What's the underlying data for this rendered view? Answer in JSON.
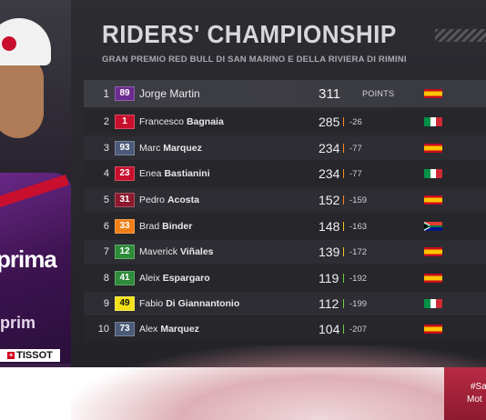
{
  "header": {
    "title": "RIDERS' CHAMPIONSHIP",
    "subtitle": "GRAN PREMIO RED BULL DI SAN MARINO E DELLA RIVIERA DI RIMINI"
  },
  "points_label": "POINTS",
  "sponsor": "TISSOT",
  "rider_photo": {
    "sponsor_text": "prima",
    "sponsor_text_lower": "prim"
  },
  "rows": [
    {
      "pos": "1",
      "num": "89",
      "num_bg": "#6a2c8e",
      "num_color": "#ffffff",
      "first": "Jorge",
      "last": "Martin",
      "points": "311",
      "gap": "",
      "flag": "spain"
    },
    {
      "pos": "2",
      "num": "1",
      "num_bg": "#c8102e",
      "num_color": "#ffffff",
      "first": "Francesco",
      "last": "Bagnaia",
      "points": "285",
      "gap": "-26",
      "flag": "italy"
    },
    {
      "pos": "3",
      "num": "93",
      "num_bg": "#4b5a78",
      "num_color": "#ffffff",
      "first": "Marc",
      "last": "Marquez",
      "points": "234",
      "gap": "-77",
      "flag": "spain"
    },
    {
      "pos": "4",
      "num": "23",
      "num_bg": "#c8102e",
      "num_color": "#ffffff",
      "first": "Enea",
      "last": "Bastianini",
      "points": "234",
      "gap": "-77",
      "flag": "italy"
    },
    {
      "pos": "5",
      "num": "31",
      "num_bg": "#8c1a2e",
      "num_color": "#ffffff",
      "first": "Pedro",
      "last": "Acosta",
      "points": "152",
      "gap": "-159",
      "flag": "spain"
    },
    {
      "pos": "6",
      "num": "33",
      "num_bg": "#f07f16",
      "num_color": "#ffffff",
      "first": "Brad",
      "last": "Binder",
      "points": "148",
      "gap": "-163",
      "flag": "southafrica"
    },
    {
      "pos": "7",
      "num": "12",
      "num_bg": "#2e8b3a",
      "num_color": "#ffffff",
      "first": "Maverick",
      "last": "Viñales",
      "points": "139",
      "gap": "-172",
      "flag": "spain"
    },
    {
      "pos": "8",
      "num": "41",
      "num_bg": "#2e8b3a",
      "num_color": "#ffffff",
      "first": "Aleix",
      "last": "Espargaro",
      "points": "119",
      "gap": "-192",
      "flag": "spain"
    },
    {
      "pos": "9",
      "num": "49",
      "num_bg": "#f2e21b",
      "num_color": "#111111",
      "first": "Fabio",
      "last": "Di Giannantonio",
      "points": "112",
      "gap": "-199",
      "flag": "italy"
    },
    {
      "pos": "10",
      "num": "73",
      "num_bg": "#4b5a78",
      "num_color": "#ffffff",
      "first": "Alex",
      "last": "Marquez",
      "points": "104",
      "gap": "-207",
      "flag": "spain"
    }
  ],
  "footer": {
    "hashtag": "#Sa",
    "brand": "Mot"
  },
  "colors": {
    "gap_bar_top": "#ff8a1e",
    "gap_bar_mid": "#f2c11b",
    "gap_bar_low": "#6fcf3b"
  }
}
